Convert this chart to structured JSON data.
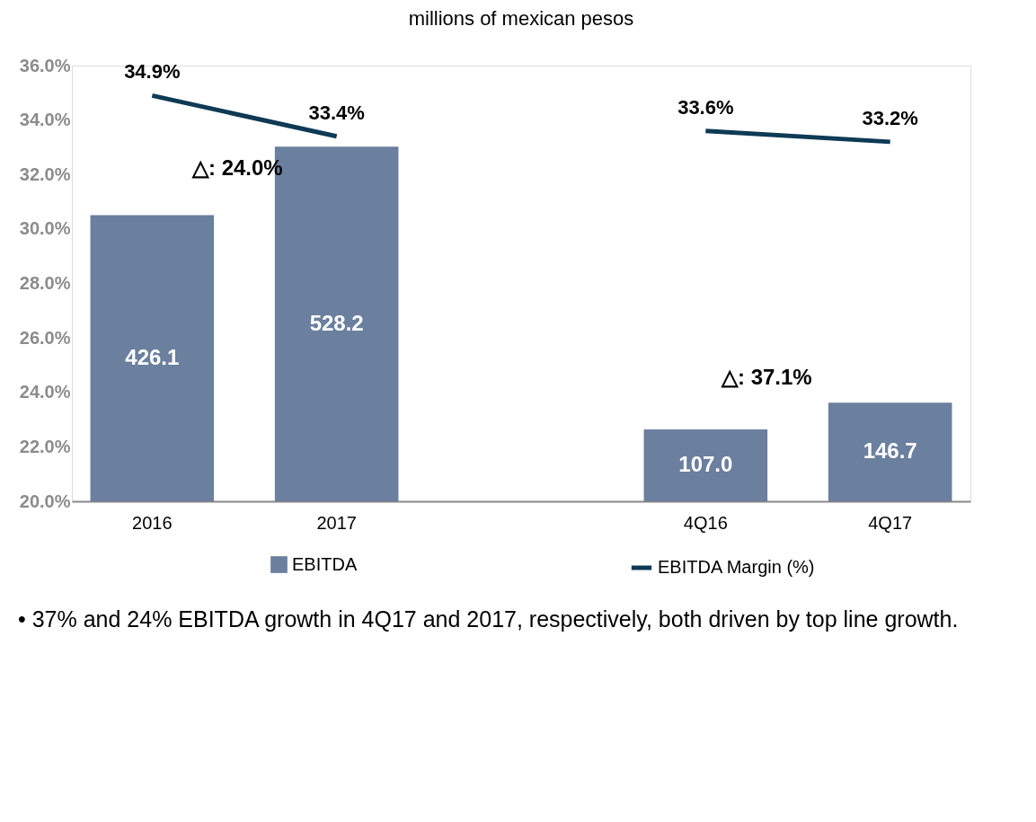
{
  "chart_data": {
    "type": "bar",
    "title": "millions of mexican pesos",
    "categories": [
      "2016",
      "2017",
      null,
      "4Q16",
      "4Q17"
    ],
    "series": [
      {
        "name": "EBITDA",
        "type": "bar",
        "axis": "y2",
        "color": "#6b7f9e",
        "values": [
          426.1,
          528.2,
          null,
          107.0,
          146.7
        ],
        "value_labels": [
          "426.1",
          "528.2",
          null,
          "107.0",
          "146.7"
        ]
      },
      {
        "name": "EBITDA Margin (%)",
        "type": "line",
        "color": "#0e3a55",
        "values": [
          34.9,
          33.4,
          null,
          33.6,
          33.2
        ],
        "value_labels": [
          "34.9%",
          "33.4%",
          null,
          "33.6%",
          "33.2%"
        ]
      }
    ],
    "ylim": [
      20,
      36
    ],
    "yticks": [
      {
        "value": 20,
        "label": "20.0%"
      },
      {
        "value": 22,
        "label": "22.0%"
      },
      {
        "value": 24,
        "label": "24.0%"
      },
      {
        "value": 26,
        "label": "26.0%"
      },
      {
        "value": 28,
        "label": "28.0%"
      },
      {
        "value": 30,
        "label": "30.0%"
      },
      {
        "value": 32,
        "label": "32.0%"
      },
      {
        "value": 34,
        "label": "34.0%"
      },
      {
        "value": 36,
        "label": "36.0%"
      }
    ],
    "annotations": [
      "△: 24.0%",
      "△: 37.1%",
      "•   37% and 24% EBITDA growth in 4Q17 and 2017, respectively, both driven by top line growth."
    ],
    "legend": "bottom",
    "grid": false
  }
}
